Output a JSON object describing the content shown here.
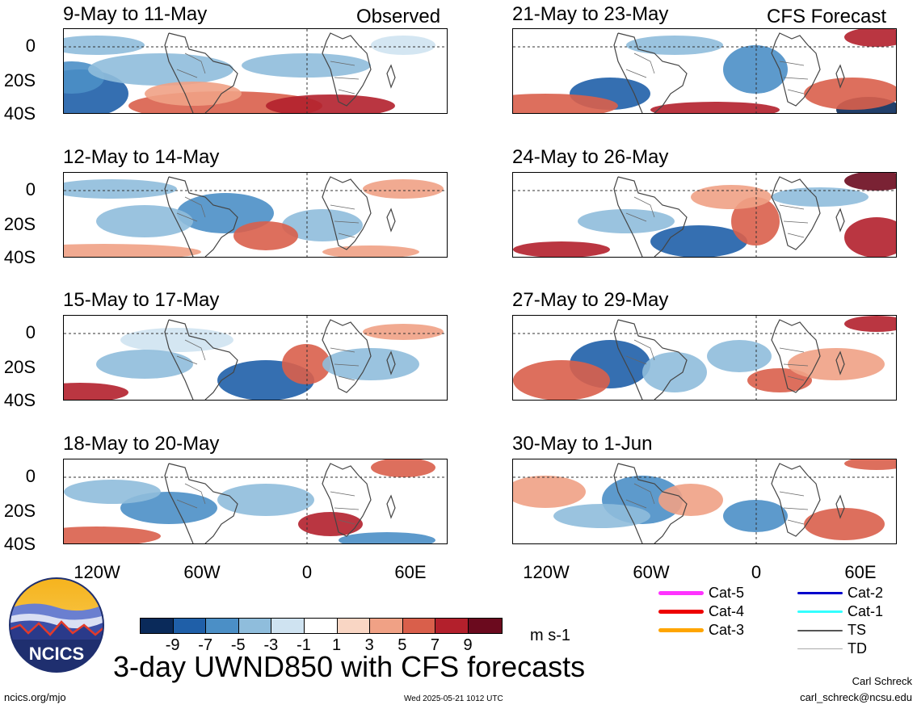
{
  "header": {
    "observed_label": "Observed",
    "forecast_label": "CFS Forecast"
  },
  "panels": [
    {
      "title": "9-May to 11-May",
      "column": "observed"
    },
    {
      "title": "12-May to 14-May",
      "column": "observed"
    },
    {
      "title": "15-May to 17-May",
      "column": "observed"
    },
    {
      "title": "18-May to 20-May",
      "column": "observed"
    },
    {
      "title": "21-May to 23-May",
      "column": "forecast"
    },
    {
      "title": "24-May to 26-May",
      "column": "forecast"
    },
    {
      "title": "27-May to 29-May",
      "column": "forecast"
    },
    {
      "title": "30-May to 1-Jun",
      "column": "forecast"
    }
  ],
  "axes": {
    "y_ticks": [
      "0",
      "20S",
      "40S"
    ],
    "x_ticks": [
      "120W",
      "60W",
      "0",
      "60E"
    ]
  },
  "colorbar": {
    "colors": [
      "#0a2a5a",
      "#1f5fa8",
      "#4b8fc6",
      "#8fbddc",
      "#cfe3f1",
      "#ffffff",
      "#f9d6c4",
      "#f0a185",
      "#d95f4b",
      "#b3202c",
      "#6b0a1e"
    ],
    "labels": [
      "-9",
      "-7",
      "-5",
      "-3",
      "-1",
      "1",
      "3",
      "5",
      "7",
      "9"
    ],
    "units": "m s-1"
  },
  "storm_legend": [
    {
      "label": "Cat-5",
      "color": "#ff33ff"
    },
    {
      "label": "Cat-4",
      "color": "#ee0000"
    },
    {
      "label": "Cat-3",
      "color": "#ffa500"
    },
    {
      "label": "Cat-2",
      "color": "#0000cc"
    },
    {
      "label": "Cat-1",
      "color": "#33ffff"
    },
    {
      "label": "TS",
      "color": "#555555"
    },
    {
      "label": "TD",
      "color": "#aaaaaa"
    }
  ],
  "logo": {
    "text": "NCICS"
  },
  "footer": {
    "title": "3-day UWND850 with CFS forecasts",
    "url": "ncics.org/mjo",
    "timestamp": "Wed 2025-05-21 1012 UTC",
    "author": "Carl Schreck",
    "email": "carl_schreck@ncsu.edu"
  }
}
